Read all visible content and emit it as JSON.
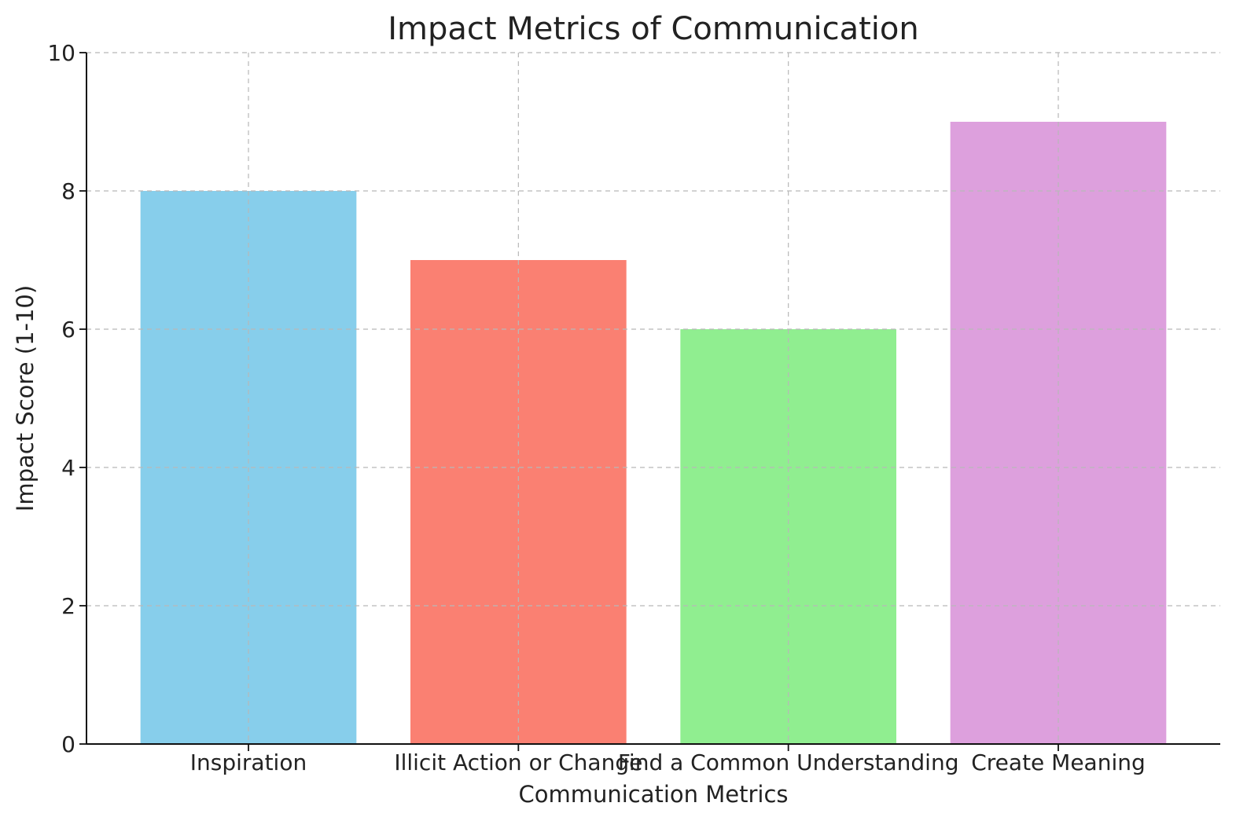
{
  "chart_data": {
    "type": "bar",
    "title": "Impact Metrics of Communication",
    "xlabel": "Communication Metrics",
    "ylabel": "Impact Score (1-10)",
    "categories": [
      "Inspiration",
      "Illicit Action or Change",
      "Find a Common Understanding",
      "Create Meaning"
    ],
    "values": [
      8,
      7,
      6,
      9
    ],
    "colors": [
      "#87ceeb",
      "#fa8072",
      "#90ee90",
      "#dda0dd"
    ],
    "ylim": [
      0,
      10
    ],
    "yticks": [
      0,
      2,
      4,
      6,
      8,
      10
    ],
    "grid": true
  }
}
